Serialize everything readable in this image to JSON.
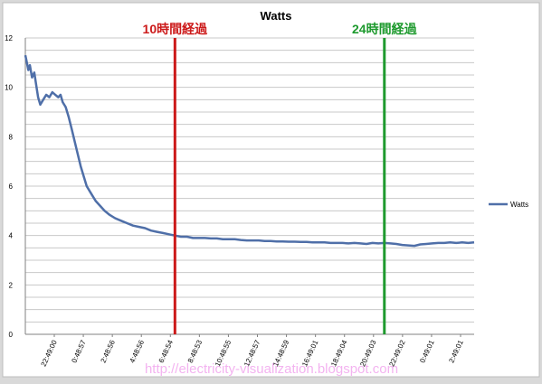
{
  "chart_data": {
    "type": "line",
    "title": "Watts",
    "xlabel": "",
    "ylabel": "",
    "ylim": [
      0,
      12
    ],
    "yticks": [
      0,
      2,
      4,
      6,
      8,
      10,
      12
    ],
    "grid": true,
    "legend_position": "right",
    "x_tick_labels": [
      "22:49:00",
      "0:48:57",
      "2:48:56",
      "4:48:56",
      "6:48:54",
      "8:48:53",
      "10:48:55",
      "12:48:57",
      "14:48:59",
      "16:49:01",
      "18:49:04",
      "20:49:03",
      "22:49:02",
      "0:49:01",
      "2:49:01"
    ],
    "series": [
      {
        "name": "Watts",
        "color": "#4f6fa8",
        "x": [
          0,
          0.1,
          0.2,
          0.3,
          0.45,
          0.6,
          0.75,
          0.85,
          1.0,
          1.2,
          1.4,
          1.6,
          1.8,
          2.0,
          2.2,
          2.35,
          2.5,
          2.7,
          2.9,
          3.1,
          3.3,
          3.5,
          3.7,
          3.9,
          4.1,
          4.4,
          4.7,
          5.0,
          5.3,
          5.6,
          6.0,
          6.4,
          6.8,
          7.2,
          7.6,
          8.0,
          8.4,
          8.8,
          9.2,
          9.6,
          10.0,
          10.4,
          10.8,
          11.2,
          11.6,
          12.0,
          12.4,
          12.8,
          13.2,
          13.6,
          14.0,
          14.4,
          14.8,
          15.2,
          15.6,
          16.0,
          16.4,
          16.8,
          17.2,
          17.6,
          18.0,
          18.4,
          18.8,
          19.2,
          19.6,
          20.0,
          20.4,
          20.8,
          21.2,
          21.6,
          22.0,
          22.4,
          22.8,
          23.2,
          23.6,
          24.0,
          24.4,
          24.8,
          25.2,
          25.6,
          26.0,
          26.4,
          26.8,
          27.2,
          27.6,
          28.0,
          28.4,
          28.8,
          29.2,
          29.6,
          30.0
        ],
        "values": [
          11.3,
          11.0,
          10.7,
          10.9,
          10.4,
          10.6,
          10.0,
          9.6,
          9.3,
          9.5,
          9.7,
          9.6,
          9.8,
          9.7,
          9.6,
          9.7,
          9.4,
          9.2,
          8.8,
          8.3,
          7.8,
          7.3,
          6.8,
          6.4,
          6.0,
          5.7,
          5.4,
          5.2,
          5.0,
          4.85,
          4.7,
          4.6,
          4.5,
          4.4,
          4.35,
          4.3,
          4.2,
          4.15,
          4.1,
          4.05,
          4.0,
          3.95,
          3.95,
          3.9,
          3.9,
          3.9,
          3.88,
          3.88,
          3.85,
          3.85,
          3.85,
          3.82,
          3.8,
          3.8,
          3.8,
          3.78,
          3.78,
          3.76,
          3.76,
          3.75,
          3.75,
          3.74,
          3.74,
          3.72,
          3.72,
          3.72,
          3.7,
          3.7,
          3.7,
          3.68,
          3.7,
          3.68,
          3.66,
          3.7,
          3.68,
          3.7,
          3.68,
          3.66,
          3.62,
          3.6,
          3.58,
          3.64,
          3.66,
          3.68,
          3.7,
          3.7,
          3.72,
          3.7,
          3.72,
          3.7,
          3.72
        ]
      }
    ],
    "annotations": [
      {
        "label": "10時間経過",
        "x": 10,
        "color": "#cc1a1a"
      },
      {
        "label": "24時間経過",
        "x": 24,
        "color": "#1e9a2e"
      }
    ]
  },
  "watermark": "http://electricity-visualization.blogspot.com"
}
